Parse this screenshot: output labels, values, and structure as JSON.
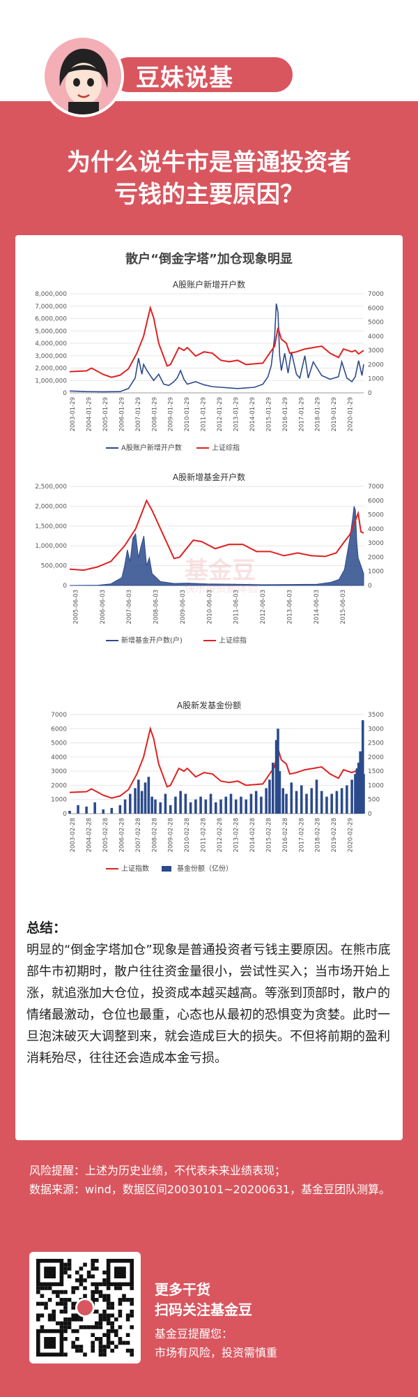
{
  "brand": {
    "title": "豆妹说基"
  },
  "headline": {
    "line1": "为什么说牛市是普通投资者",
    "line2": "亏钱的主要原因？"
  },
  "card": {
    "title": "散户“倒金字塔”加仓现象明显"
  },
  "watermark": {
    "main": "基金豆",
    "sub": "快乐投资新体验"
  },
  "colors": {
    "brand": "#d9565f",
    "red_line": "#e02020",
    "blue": "#2b4a8c"
  },
  "chart_data": [
    {
      "type": "line",
      "title": "A股账户新增开户数",
      "x_tick_labels": [
        "2003-01-29",
        "2004-01-29",
        "2005-01-29",
        "2006-01-29",
        "2007-01-29",
        "2008-01-29",
        "2009-01-29",
        "2010-01-29",
        "2011-01-29",
        "2012-01-29",
        "2013-01-29",
        "2014-01-29",
        "2015-01-29",
        "2016-01-29",
        "2017-01-29",
        "2018-01-29",
        "2019-01-29",
        "2020-01-29"
      ],
      "y_left_ticks": [
        "0",
        "1,000,000",
        "2,000,000",
        "3,000,000",
        "4,000,000",
        "5,000,000",
        "6,000,000",
        "7,000,000",
        "8,000,000"
      ],
      "y_right_ticks": [
        "0",
        "1000",
        "2000",
        "3000",
        "4000",
        "5000",
        "6000",
        "7000"
      ],
      "ylim_left": [
        0,
        8000000
      ],
      "ylim_right": [
        0,
        7000
      ],
      "xlim": [
        2003.0,
        2020.5
      ],
      "series": [
        {
          "name": "A股账户新增开户数",
          "axis": "left",
          "color": "#2b4a8c",
          "x": [
            2003.0,
            2004.0,
            2005.0,
            2006.0,
            2006.5,
            2006.9,
            2007.1,
            2007.3,
            2007.4,
            2007.6,
            2007.8,
            2008.0,
            2008.3,
            2008.6,
            2008.9,
            2009.2,
            2009.4,
            2009.6,
            2009.8,
            2010.0,
            2010.5,
            2011.0,
            2011.5,
            2012.0,
            2012.5,
            2013.0,
            2013.5,
            2014.0,
            2014.5,
            2014.8,
            2015.0,
            2015.2,
            2015.3,
            2015.4,
            2015.5,
            2015.6,
            2015.8,
            2016.0,
            2016.2,
            2016.5,
            2016.7,
            2017.0,
            2017.2,
            2017.5,
            2018.0,
            2018.5,
            2019.0,
            2019.2,
            2019.5,
            2019.8,
            2020.0,
            2020.2,
            2020.4,
            2020.5
          ],
          "values": [
            150000,
            100000,
            90000,
            100000,
            350000,
            1200000,
            2800000,
            1500000,
            2300000,
            1800000,
            1400000,
            1000000,
            1500000,
            700000,
            600000,
            900000,
            1200000,
            1800000,
            1100000,
            700000,
            900000,
            650000,
            500000,
            450000,
            400000,
            350000,
            400000,
            450000,
            700000,
            1300000,
            2200000,
            4500000,
            7200000,
            6500000,
            3000000,
            1800000,
            3200000,
            1600000,
            3300000,
            1500000,
            1200000,
            3000000,
            1200000,
            2500000,
            1400000,
            1100000,
            1300000,
            2500000,
            1200000,
            900000,
            1300000,
            2600000,
            1400000,
            2300000
          ]
        },
        {
          "name": "上证综指",
          "axis": "right",
          "color": "#e02020",
          "x": [
            2003.0,
            2004.0,
            2004.3,
            2005.0,
            2005.5,
            2006.0,
            2006.5,
            2007.0,
            2007.4,
            2007.8,
            2008.0,
            2008.3,
            2008.8,
            2009.0,
            2009.5,
            2009.8,
            2010.0,
            2010.5,
            2011.0,
            2011.5,
            2012.0,
            2012.5,
            2013.0,
            2013.5,
            2014.0,
            2014.5,
            2014.9,
            2015.2,
            2015.4,
            2015.6,
            2015.9,
            2016.1,
            2016.5,
            2017.0,
            2017.5,
            2018.0,
            2018.5,
            2019.0,
            2019.3,
            2019.8,
            2020.0,
            2020.2,
            2020.5
          ],
          "values": [
            1500,
            1550,
            1750,
            1300,
            1100,
            1250,
            1700,
            2800,
            4000,
            6000,
            5300,
            3500,
            1900,
            2000,
            3200,
            3000,
            3200,
            2600,
            2900,
            2800,
            2300,
            2200,
            2300,
            2000,
            2050,
            2100,
            2800,
            3300,
            4600,
            3800,
            3500,
            2800,
            2900,
            3100,
            3200,
            3300,
            2800,
            2500,
            3100,
            2900,
            3000,
            2750,
            3000
          ]
        }
      ]
    },
    {
      "type": "line",
      "title": "A股新增基金开户数",
      "x_tick_labels": [
        "2005-06-03",
        "2006-06-03",
        "2007-06-03",
        "2008-06-03",
        "2009-06-03",
        "2010-06-03",
        "2011-06-03",
        "2012-06-03",
        "2013-06-03",
        "2014-06-03",
        "2015-06-03"
      ],
      "y_left_ticks": [
        "0",
        "500,000",
        "1,000,000",
        "1,500,000",
        "2,000,000",
        "2,500,000"
      ],
      "y_right_ticks": [
        "0",
        "1000",
        "2000",
        "3000",
        "4000",
        "5000",
        "6000",
        "7000"
      ],
      "ylim_left": [
        0,
        2500000
      ],
      "ylim_right": [
        0,
        7000
      ],
      "xlim": [
        2005.0,
        2015.7
      ],
      "series": [
        {
          "name": "新增基金开户数(户)",
          "axis": "left",
          "color": "#2b4a8c",
          "x": [
            2005.0,
            2006.0,
            2006.5,
            2006.9,
            2007.0,
            2007.1,
            2007.2,
            2007.3,
            2007.4,
            2007.5,
            2007.6,
            2007.7,
            2007.8,
            2007.9,
            2008.0,
            2008.3,
            2008.8,
            2009.3,
            2010.0,
            2011.0,
            2012.0,
            2013.0,
            2014.0,
            2014.5,
            2014.8,
            2015.0,
            2015.1,
            2015.2,
            2015.3,
            2015.35,
            2015.4,
            2015.45,
            2015.5,
            2015.6,
            2015.7
          ],
          "values": [
            0,
            5000,
            40000,
            200000,
            500000,
            900000,
            600000,
            1200000,
            1300000,
            700000,
            1000000,
            1250000,
            500000,
            700000,
            300000,
            100000,
            50000,
            60000,
            40000,
            30000,
            20000,
            25000,
            30000,
            80000,
            150000,
            400000,
            800000,
            1200000,
            1700000,
            2000000,
            1900000,
            1100000,
            700000,
            500000,
            300000
          ]
        },
        {
          "name": "上证综指",
          "axis": "right",
          "color": "#e02020",
          "x": [
            2005.0,
            2005.5,
            2006.0,
            2006.5,
            2007.0,
            2007.4,
            2007.8,
            2008.0,
            2008.4,
            2008.8,
            2009.0,
            2009.5,
            2009.8,
            2010.3,
            2010.8,
            2011.3,
            2011.8,
            2012.3,
            2012.8,
            2013.3,
            2013.8,
            2014.3,
            2014.7,
            2015.0,
            2015.2,
            2015.4,
            2015.5,
            2015.6,
            2015.7
          ],
          "values": [
            1150,
            1080,
            1300,
            1700,
            2800,
            4000,
            6000,
            5300,
            3600,
            1900,
            2000,
            3200,
            3100,
            2600,
            2900,
            2900,
            2400,
            2400,
            2100,
            2300,
            2100,
            2050,
            2300,
            3100,
            3600,
            4600,
            5100,
            3800,
            3700
          ]
        }
      ]
    },
    {
      "type": "bar",
      "title": "A股新发基金份额",
      "x_tick_labels": [
        "2003-02-28",
        "2004-02-28",
        "2005-02-28",
        "2006-02-28",
        "2007-02-28",
        "2008-02-28",
        "2009-02-28",
        "2010-02-28",
        "2011-02-28",
        "2012-02-28",
        "2013-02-28",
        "2014-02-28",
        "2015-02-28",
        "2016-02-28",
        "2017-02-28",
        "2018-02-28",
        "2019-02-28",
        "2020-02-29"
      ],
      "y_left_ticks": [
        "0",
        "1000",
        "2000",
        "3000",
        "4000",
        "5000",
        "6000",
        "7000"
      ],
      "y_right_ticks": [
        "0",
        "500",
        "1000",
        "1500",
        "2000",
        "2500",
        "3000",
        "3500"
      ],
      "ylim_left": [
        0,
        7000
      ],
      "ylim_right": [
        0,
        3500
      ],
      "xlim": [
        2003.0,
        2020.5
      ],
      "series": [
        {
          "name": "上证指数",
          "axis": "left",
          "color": "#e02020",
          "x": [
            2003.0,
            2004.0,
            2004.3,
            2005.0,
            2005.5,
            2006.0,
            2006.5,
            2007.0,
            2007.4,
            2007.8,
            2008.0,
            2008.3,
            2008.8,
            2009.0,
            2009.5,
            2009.8,
            2010.0,
            2010.5,
            2011.0,
            2011.5,
            2012.0,
            2012.5,
            2013.0,
            2013.5,
            2014.0,
            2014.5,
            2014.9,
            2015.2,
            2015.4,
            2015.6,
            2015.9,
            2016.1,
            2016.5,
            2017.0,
            2017.5,
            2018.0,
            2018.5,
            2019.0,
            2019.3,
            2019.8,
            2020.0,
            2020.2,
            2020.5
          ],
          "values": [
            1500,
            1550,
            1750,
            1300,
            1100,
            1250,
            1700,
            2800,
            4000,
            6000,
            5300,
            3500,
            1900,
            2000,
            3200,
            3000,
            3200,
            2600,
            2900,
            2800,
            2300,
            2200,
            2300,
            2000,
            2050,
            2100,
            2800,
            3300,
            4600,
            3800,
            3500,
            2800,
            2900,
            3100,
            3200,
            3300,
            2800,
            2500,
            3100,
            2900,
            3000,
            2750,
            3000
          ]
        },
        {
          "name": "基金份额（亿份）",
          "axis": "right",
          "color": "#2b4a8c",
          "x": [
            2003.0,
            2003.5,
            2004.0,
            2004.5,
            2005.0,
            2005.5,
            2006.0,
            2006.3,
            2006.6,
            2006.9,
            2007.1,
            2007.3,
            2007.5,
            2007.7,
            2007.9,
            2008.1,
            2008.4,
            2008.7,
            2009.0,
            2009.3,
            2009.6,
            2009.9,
            2010.2,
            2010.5,
            2010.8,
            2011.1,
            2011.4,
            2011.7,
            2012.0,
            2012.3,
            2012.6,
            2012.9,
            2013.2,
            2013.5,
            2013.8,
            2014.1,
            2014.4,
            2014.7,
            2014.9,
            2015.1,
            2015.3,
            2015.4,
            2015.5,
            2015.7,
            2015.9,
            2016.2,
            2016.5,
            2016.8,
            2017.1,
            2017.4,
            2017.7,
            2018.0,
            2018.3,
            2018.6,
            2018.9,
            2019.2,
            2019.5,
            2019.8,
            2020.0,
            2020.1,
            2020.2,
            2020.3,
            2020.4,
            2020.45,
            2020.5
          ],
          "values": [
            100,
            300,
            250,
            400,
            150,
            200,
            300,
            500,
            700,
            900,
            1200,
            800,
            1100,
            1300,
            600,
            500,
            400,
            700,
            300,
            600,
            800,
            700,
            400,
            500,
            600,
            500,
            700,
            400,
            500,
            600,
            700,
            500,
            600,
            500,
            700,
            800,
            600,
            900,
            1200,
            1800,
            2600,
            3000,
            1500,
            900,
            700,
            1100,
            800,
            1000,
            700,
            900,
            1200,
            800,
            600,
            700,
            800,
            900,
            1000,
            1200,
            1400,
            1600,
            1800,
            2200,
            1700,
            3300,
            1400
          ]
        }
      ]
    }
  ],
  "summary": {
    "heading": "总结：",
    "body": "明显的“倒金字塔加仓”现象是普通投资者亏钱主要原因。在熊市底部牛市初期时，散户往往资金量很小，尝试性买入；当市场开始上涨，就追涨加大仓位，投资成本越买越高。等涨到顶部时，散户的情绪最激动，仓位也最重，心态也从最初的恐惧变为贪婪。此时一旦泡沫破灭大调整到来，就会造成巨大的损失。不但将前期的盈利消耗殆尽，往往还会造成本金亏损。"
  },
  "footer": {
    "risk": "风险提醒：上述为历史业绩，不代表未来业绩表现；",
    "source": "数据来源：wind，数据区间20030101~20200631，基金豆团队测算。",
    "cta1": "更多干货",
    "cta2": "扫码关注基金豆",
    "cta3": "基金豆提醒您：",
    "cta4": "市场有风险，投资需慎重"
  }
}
